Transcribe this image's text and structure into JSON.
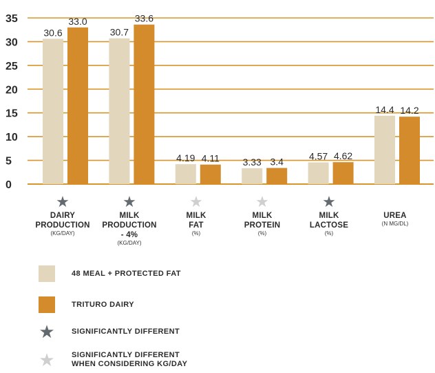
{
  "colors": {
    "series_a": "#e2d6bc",
    "series_b": "#d38b2c",
    "gridline": "#d9952a",
    "star_dark": "#636a70",
    "star_light": "#cfcfcf",
    "text": "#2b2b2b"
  },
  "chart_data": {
    "type": "bar",
    "categories": [
      "DAIRY PRODUCTION",
      "MILK PRODUCTION - 4%",
      "MILK FAT",
      "MILK PROTEIN",
      "MILK LACTOSE",
      "UREA"
    ],
    "series": [
      {
        "name": "48 MEAL + PROTECTED FAT",
        "values": [
          30.6,
          30.7,
          4.19,
          3.33,
          4.57,
          14.4
        ],
        "labels": [
          "30.6",
          "30.7",
          "4.19",
          "3.33",
          "4.57",
          "14.4"
        ]
      },
      {
        "name": "TRITURO DAIRY",
        "values": [
          33.0,
          33.6,
          4.11,
          3.4,
          4.62,
          14.2
        ],
        "labels": [
          "33.0",
          "33.6",
          "4.11",
          "3.4",
          "4.62",
          "14.2"
        ]
      }
    ],
    "y_ticks": [
      "0",
      "5",
      "10",
      "15",
      "20",
      "25",
      "30",
      "35"
    ],
    "ylim": [
      0,
      35
    ],
    "grid": true
  },
  "categories": [
    {
      "line1": "DAIRY",
      "line2": "PRODUCTION",
      "line3": "",
      "unit": "(KG/DAY)",
      "star": "dark"
    },
    {
      "line1": "MILK",
      "line2": "PRODUCTION",
      "line3": "- 4%",
      "unit": "(KG/DAY)",
      "star": "dark"
    },
    {
      "line1": "MILK",
      "line2": "FAT",
      "line3": "",
      "unit": "(%)",
      "star": "light"
    },
    {
      "line1": "MILK",
      "line2": "PROTEIN",
      "line3": "",
      "unit": "(%)",
      "star": "light"
    },
    {
      "line1": "MILK",
      "line2": "LACTOSE",
      "line3": "",
      "unit": "(%)",
      "star": "dark"
    },
    {
      "line1": "UREA",
      "line2": "",
      "line3": "",
      "unit": "(N MG/DL)",
      "star": "none"
    }
  ],
  "legend": {
    "series_a": "48 MEAL + PROTECTED FAT",
    "series_b": "TRITURO DAIRY",
    "sig": "SIGNIFICANTLY DIFFERENT",
    "sig_kg_line1": "SIGNIFICANTLY DIFFERENT",
    "sig_kg_line2": "WHEN CONSIDERING KG/DAY",
    "star_glyph": "★"
  }
}
